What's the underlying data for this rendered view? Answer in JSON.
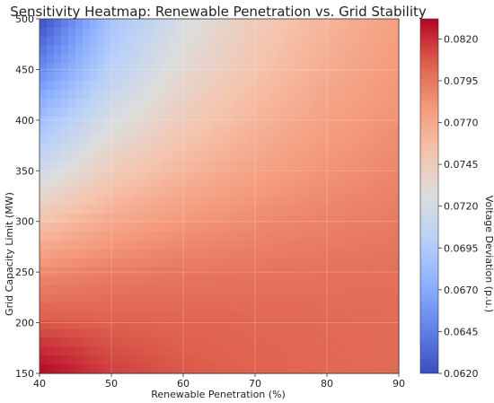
{
  "chart_data": {
    "type": "heatmap",
    "title": "Sensitivity Heatmap: Renewable Penetration vs. Grid Stability",
    "xlabel": "Renewable Penetration (%)",
    "ylabel": "Grid Capacity Limit (MW)",
    "xlim": [
      40,
      90
    ],
    "ylim": [
      150,
      500
    ],
    "xticks": [
      40,
      50,
      60,
      70,
      80,
      90
    ],
    "yticks": [
      150,
      200,
      250,
      300,
      350,
      400,
      450,
      500
    ],
    "colorbar": {
      "label": "Voltage Deviation (p.u.)",
      "range": [
        0.062,
        0.0832
      ],
      "ticks": [
        "0.0620",
        "0.0645",
        "0.0670",
        "0.0695",
        "0.0720",
        "0.0745",
        "0.0770",
        "0.0795",
        "0.0820"
      ],
      "colormap": "coolwarm",
      "position": "right"
    },
    "grid": true,
    "x_samples": [
      40,
      50,
      60,
      70,
      80,
      90
    ],
    "y_samples": [
      150,
      200,
      250,
      300,
      350,
      400,
      450,
      500
    ],
    "z_values": [
      [
        0.0832,
        0.0815,
        0.0808,
        0.0804,
        0.0802,
        0.08
      ],
      [
        0.0808,
        0.0805,
        0.0803,
        0.0802,
        0.0801,
        0.08
      ],
      [
        0.0786,
        0.0792,
        0.0795,
        0.0796,
        0.0797,
        0.0798
      ],
      [
        0.0752,
        0.077,
        0.078,
        0.0786,
        0.079,
        0.0793
      ],
      [
        0.0715,
        0.0745,
        0.0762,
        0.0774,
        0.0782,
        0.0788
      ],
      [
        0.0685,
        0.0722,
        0.0745,
        0.0762,
        0.0775,
        0.0783
      ],
      [
        0.065,
        0.0702,
        0.0732,
        0.0752,
        0.0768,
        0.0779
      ],
      [
        0.062,
        0.0688,
        0.0722,
        0.0745,
        0.0762,
        0.0776
      ]
    ]
  }
}
